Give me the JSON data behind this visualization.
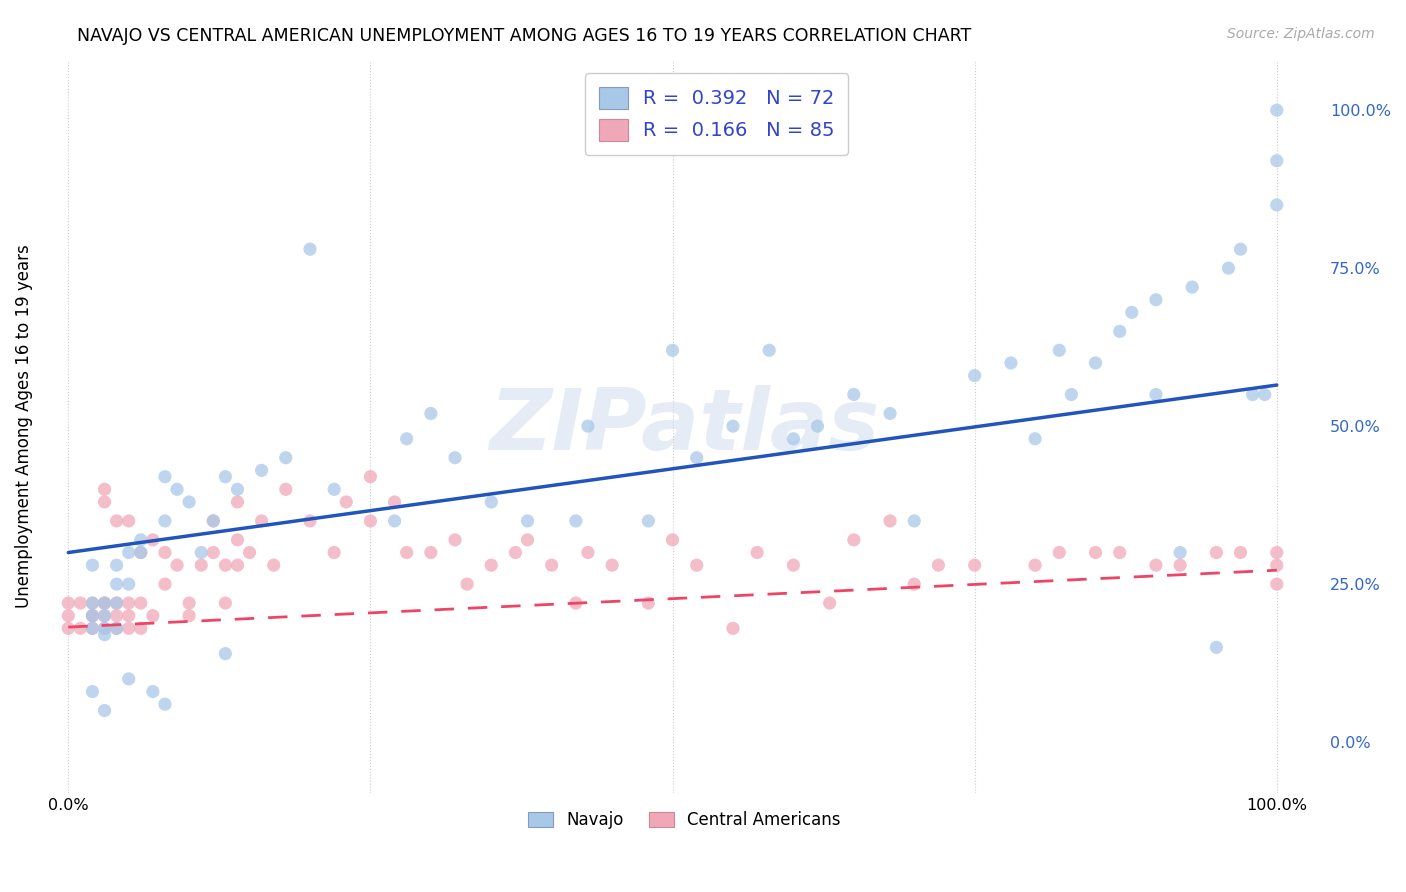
{
  "title": "NAVAJO VS CENTRAL AMERICAN UNEMPLOYMENT AMONG AGES 16 TO 19 YEARS CORRELATION CHART",
  "source": "Source: ZipAtlas.com",
  "ylabel": "Unemployment Among Ages 16 to 19 years",
  "xlim": [
    -0.02,
    1.04
  ],
  "ylim": [
    -0.08,
    1.08
  ],
  "xticks": [
    0.0,
    0.25,
    0.5,
    0.75,
    1.0
  ],
  "xtick_labels": [
    "0.0%",
    "",
    "",
    "",
    "100.0%"
  ],
  "ytick_labels_right": [
    "100.0%",
    "75.0%",
    "50.0%",
    "25.0%",
    "0.0%"
  ],
  "yticks_right": [
    1.0,
    0.75,
    0.5,
    0.25,
    0.0
  ],
  "legend_R1": "0.392",
  "legend_N1": "72",
  "legend_R2": "0.166",
  "legend_N2": "85",
  "navajo_color": "#a8c8e8",
  "central_color": "#f0a8b8",
  "navajo_line_color": "#2255bb",
  "central_line_color": "#ee4466",
  "background_color": "#ffffff",
  "watermark_text": "ZIPatlas",
  "legend_label_1": "Navajo",
  "legend_label_2": "Central Americans",
  "navajo_x": [
    0.02,
    0.02,
    0.02,
    0.02,
    0.02,
    0.03,
    0.03,
    0.03,
    0.03,
    0.03,
    0.04,
    0.04,
    0.04,
    0.04,
    0.05,
    0.05,
    0.05,
    0.06,
    0.06,
    0.07,
    0.08,
    0.08,
    0.08,
    0.09,
    0.1,
    0.11,
    0.12,
    0.13,
    0.13,
    0.14,
    0.16,
    0.18,
    0.2,
    0.22,
    0.27,
    0.28,
    0.3,
    0.32,
    0.35,
    0.38,
    0.43,
    0.48,
    0.52,
    0.55,
    0.58,
    0.6,
    0.62,
    0.65,
    0.68,
    0.7,
    0.75,
    0.78,
    0.8,
    0.82,
    0.83,
    0.85,
    0.87,
    0.88,
    0.9,
    0.9,
    0.92,
    0.93,
    0.95,
    0.96,
    0.97,
    0.98,
    0.99,
    1.0,
    1.0,
    1.0,
    0.5,
    0.42
  ],
  "navajo_y": [
    0.2,
    0.22,
    0.28,
    0.18,
    0.08,
    0.22,
    0.2,
    0.18,
    0.17,
    0.05,
    0.25,
    0.28,
    0.22,
    0.18,
    0.3,
    0.25,
    0.1,
    0.3,
    0.32,
    0.08,
    0.42,
    0.35,
    0.06,
    0.4,
    0.38,
    0.3,
    0.35,
    0.42,
    0.14,
    0.4,
    0.43,
    0.45,
    0.78,
    0.4,
    0.35,
    0.48,
    0.52,
    0.45,
    0.38,
    0.35,
    0.5,
    0.35,
    0.45,
    0.5,
    0.62,
    0.48,
    0.5,
    0.55,
    0.52,
    0.35,
    0.58,
    0.6,
    0.48,
    0.62,
    0.55,
    0.6,
    0.65,
    0.68,
    0.55,
    0.7,
    0.3,
    0.72,
    0.15,
    0.75,
    0.78,
    0.55,
    0.55,
    1.0,
    0.85,
    0.92,
    0.62,
    0.35
  ],
  "central_x": [
    0.0,
    0.0,
    0.0,
    0.01,
    0.01,
    0.02,
    0.02,
    0.02,
    0.02,
    0.03,
    0.03,
    0.03,
    0.03,
    0.04,
    0.04,
    0.04,
    0.05,
    0.05,
    0.05,
    0.06,
    0.06,
    0.06,
    0.07,
    0.07,
    0.08,
    0.08,
    0.09,
    0.1,
    0.1,
    0.11,
    0.12,
    0.12,
    0.13,
    0.13,
    0.14,
    0.14,
    0.15,
    0.16,
    0.17,
    0.18,
    0.2,
    0.22,
    0.23,
    0.25,
    0.25,
    0.27,
    0.28,
    0.3,
    0.32,
    0.33,
    0.35,
    0.37,
    0.38,
    0.4,
    0.42,
    0.43,
    0.45,
    0.48,
    0.5,
    0.52,
    0.55,
    0.57,
    0.6,
    0.63,
    0.65,
    0.68,
    0.7,
    0.72,
    0.75,
    0.8,
    0.82,
    0.85,
    0.87,
    0.9,
    0.92,
    0.95,
    0.97,
    1.0,
    1.0,
    1.0,
    0.03,
    0.03,
    0.04,
    0.05,
    0.14
  ],
  "central_y": [
    0.2,
    0.22,
    0.18,
    0.18,
    0.22,
    0.2,
    0.22,
    0.2,
    0.18,
    0.22,
    0.2,
    0.18,
    0.22,
    0.22,
    0.2,
    0.18,
    0.22,
    0.2,
    0.18,
    0.3,
    0.22,
    0.18,
    0.32,
    0.2,
    0.3,
    0.25,
    0.28,
    0.22,
    0.2,
    0.28,
    0.35,
    0.3,
    0.28,
    0.22,
    0.32,
    0.28,
    0.3,
    0.35,
    0.28,
    0.4,
    0.35,
    0.3,
    0.38,
    0.42,
    0.35,
    0.38,
    0.3,
    0.3,
    0.32,
    0.25,
    0.28,
    0.3,
    0.32,
    0.28,
    0.22,
    0.3,
    0.28,
    0.22,
    0.32,
    0.28,
    0.18,
    0.3,
    0.28,
    0.22,
    0.32,
    0.35,
    0.25,
    0.28,
    0.28,
    0.28,
    0.3,
    0.3,
    0.3,
    0.28,
    0.28,
    0.3,
    0.3,
    0.3,
    0.28,
    0.25,
    0.4,
    0.38,
    0.35,
    0.35,
    0.38
  ],
  "navajo_line_x0": 0.0,
  "navajo_line_y0": 0.3,
  "navajo_line_x1": 1.0,
  "navajo_line_y1": 0.565,
  "central_line_x0": 0.0,
  "central_line_y0": 0.182,
  "central_line_x1": 1.0,
  "central_line_y1": 0.272
}
